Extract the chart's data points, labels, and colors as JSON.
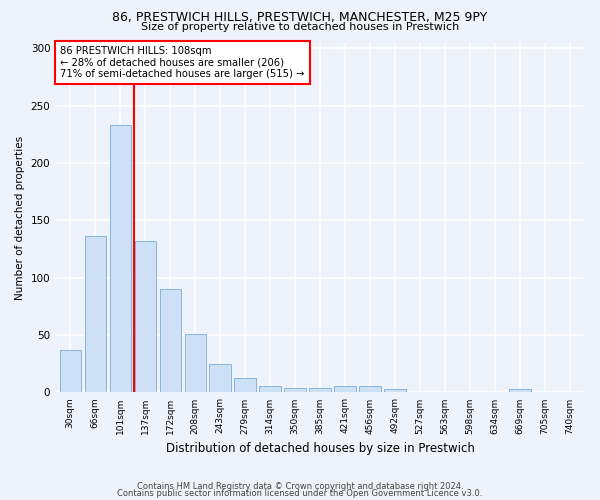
{
  "title1": "86, PRESTWICH HILLS, PRESTWICH, MANCHESTER, M25 9PY",
  "title2": "Size of property relative to detached houses in Prestwich",
  "xlabel": "Distribution of detached houses by size in Prestwich",
  "ylabel": "Number of detached properties",
  "bar_color": "#cde0f5",
  "bar_edge_color": "#7aadd4",
  "categories": [
    "30sqm",
    "66sqm",
    "101sqm",
    "137sqm",
    "172sqm",
    "208sqm",
    "243sqm",
    "279sqm",
    "314sqm",
    "350sqm",
    "385sqm",
    "421sqm",
    "456sqm",
    "492sqm",
    "527sqm",
    "563sqm",
    "598sqm",
    "634sqm",
    "669sqm",
    "705sqm",
    "740sqm"
  ],
  "values": [
    37,
    136,
    233,
    132,
    90,
    51,
    25,
    13,
    6,
    4,
    4,
    6,
    6,
    3,
    0,
    0,
    0,
    0,
    3,
    0,
    0
  ],
  "ylim": [
    0,
    305
  ],
  "yticks": [
    0,
    50,
    100,
    150,
    200,
    250,
    300
  ],
  "vline_x": 2.57,
  "annotation_text": "86 PRESTWICH HILLS: 108sqm\n← 28% of detached houses are smaller (206)\n71% of semi-detached houses are larger (515) →",
  "annotation_box_color": "white",
  "annotation_box_edge_color": "red",
  "vline_color": "red",
  "background_color": "#eef2fa",
  "grid_color": "white",
  "footer1": "Contains HM Land Registry data © Crown copyright and database right 2024.",
  "footer2": "Contains public sector information licensed under the Open Government Licence v3.0."
}
